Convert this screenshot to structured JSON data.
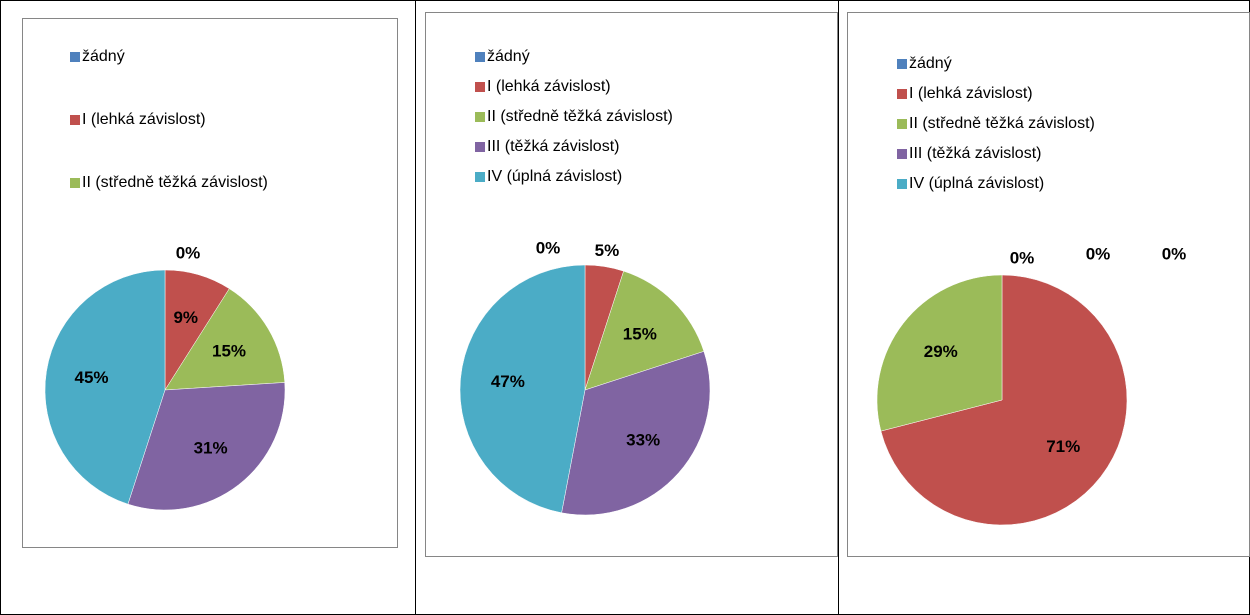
{
  "chart_data": [
    {
      "type": "pie",
      "categories": [
        "žádný",
        "I (lehká závislost)",
        "II (středně těžká závislost)",
        null,
        null
      ],
      "values": [
        0,
        9,
        15,
        31,
        45
      ],
      "value_labels": [
        "0%",
        "9%",
        "15%",
        "31%",
        "45%"
      ],
      "colors": [
        "#4f81bd",
        "#c0504d",
        "#9bbb59",
        "#8064a2",
        "#4bacc6"
      ]
    },
    {
      "type": "pie",
      "categories": [
        "žádný",
        "I (lehká závislost)",
        "II (středně těžká závislost)",
        "III (těžká závislost)",
        "IV (úplná závislost)"
      ],
      "values": [
        0,
        5,
        15,
        33,
        47
      ],
      "value_labels": [
        "0%",
        "5%",
        "15%",
        "33%",
        "47%"
      ],
      "colors": [
        "#4f81bd",
        "#c0504d",
        "#9bbb59",
        "#8064a2",
        "#4bacc6"
      ]
    },
    {
      "type": "pie",
      "categories": [
        "žádný",
        "I (lehká závislost)",
        "II (středně těžká závislost)",
        "III (těžká závislost)",
        "IV (úplná závislost)"
      ],
      "values": [
        0,
        71,
        29,
        0,
        0
      ],
      "value_labels": [
        "0%",
        "71%",
        "29%",
        "0%",
        "0%"
      ],
      "colors": [
        "#4f81bd",
        "#c0504d",
        "#9bbb59",
        "#8064a2",
        "#4bacc6"
      ]
    }
  ]
}
